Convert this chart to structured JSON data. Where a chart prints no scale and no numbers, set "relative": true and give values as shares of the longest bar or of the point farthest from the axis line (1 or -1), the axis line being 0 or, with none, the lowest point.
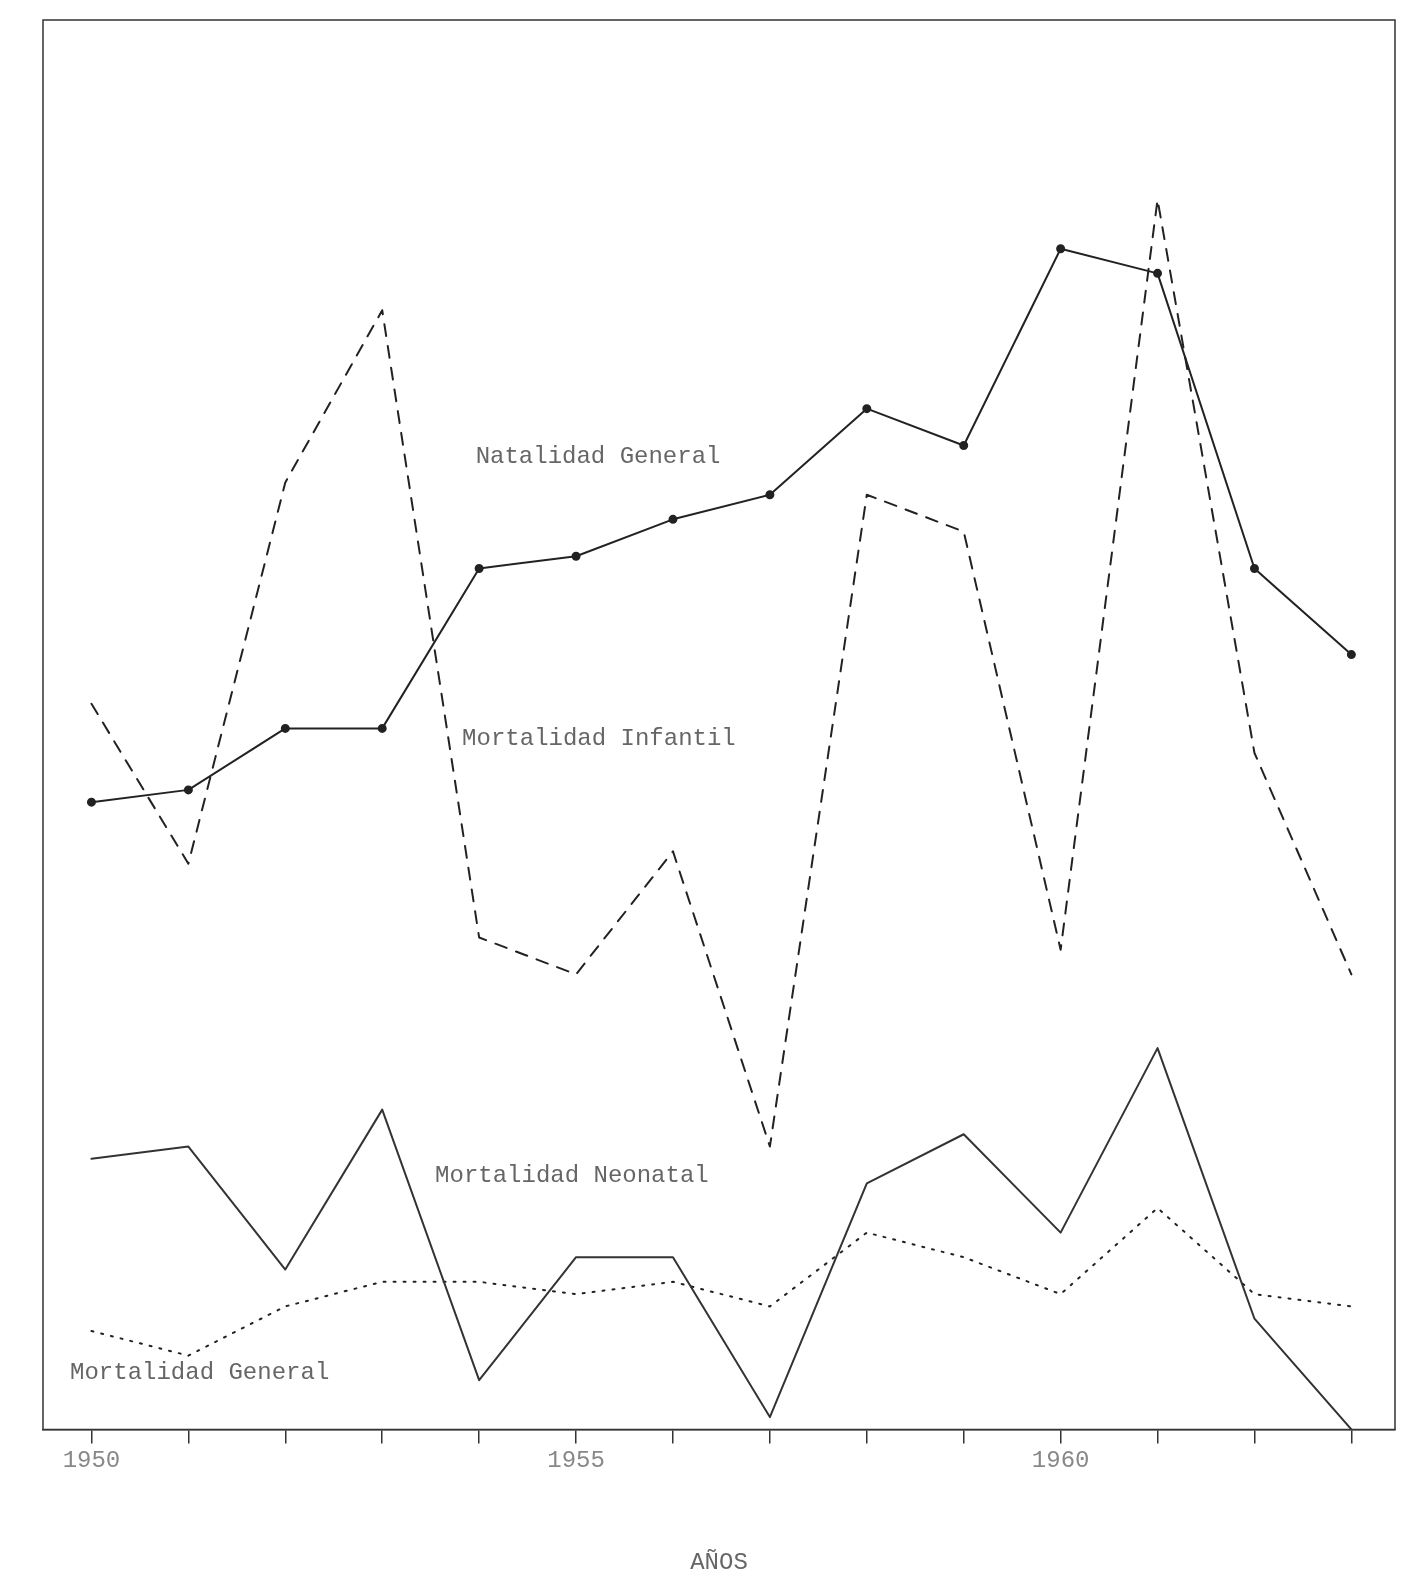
{
  "chart_data": {
    "type": "line",
    "relative": true,
    "xlabel": "AÑOS",
    "x": [
      1950,
      1951,
      1952,
      1953,
      1954,
      1955,
      1956,
      1957,
      1958,
      1959,
      1960,
      1961,
      1962,
      1963
    ],
    "xlim": [
      1949.5,
      1963.45
    ],
    "xticks": [
      1950,
      {
        "value": 1951,
        "label": null
      },
      {
        "value": 1952,
        "label": null
      },
      {
        "value": 1953,
        "label": null
      },
      {
        "value": 1954,
        "label": null
      },
      1955,
      {
        "value": 1956,
        "label": null
      },
      {
        "value": 1957,
        "label": null
      },
      {
        "value": 1958,
        "label": null
      },
      {
        "value": 1959,
        "label": null
      },
      1960,
      {
        "value": 1961,
        "label": null
      },
      {
        "value": 1962,
        "label": null
      },
      {
        "value": 1963,
        "label": null
      }
    ],
    "grid": false,
    "legend": false,
    "series": [
      {
        "name": "Natalidad General",
        "color": "#222222",
        "line_style": "solid",
        "marker": "circle",
        "values": [
          0.51,
          0.52,
          0.57,
          0.57,
          0.7,
          0.71,
          0.74,
          0.76,
          0.83,
          0.8,
          0.96,
          0.94,
          0.7,
          0.63
        ]
      },
      {
        "name": "Mortalidad Infantil",
        "color": "#222222",
        "line_style": "dashed",
        "marker": "none",
        "values": [
          0.59,
          0.46,
          0.77,
          0.91,
          0.4,
          0.37,
          0.47,
          0.23,
          0.76,
          0.73,
          0.39,
          1,
          0.55,
          0.37
        ]
      },
      {
        "name": "Mortalidad Neonatal",
        "color": "#333333",
        "line_style": "solid",
        "marker": "none",
        "values": [
          0.22,
          0.23,
          0.13,
          0.26,
          0.04,
          0.14,
          0.14,
          0.01,
          0.2,
          0.24,
          0.16,
          0.31,
          0.09,
          0.0
        ]
      },
      {
        "name": "Mortalidad General",
        "color": "#222222",
        "line_style": "dotted",
        "marker": "none",
        "values": [
          0.08,
          0.06,
          0.1,
          0.12,
          0.12,
          0.11,
          0.12,
          0.1,
          0.16,
          0.14,
          0.11,
          0.18,
          0.11,
          0.1
        ]
      }
    ]
  }
}
